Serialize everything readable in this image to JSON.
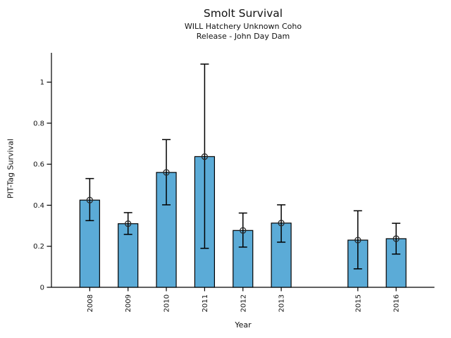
{
  "chart_data": {
    "type": "bar",
    "title": "Smolt Survival",
    "subtitle1": "WILL Hatchery Unknown Coho",
    "subtitle2": "Release - John Day Dam",
    "xlabel": "Year",
    "ylabel": "PIT-Tag Survival",
    "categories": [
      "2008",
      "2009",
      "2010",
      "2011",
      "2012",
      "2013",
      "2015",
      "2016"
    ],
    "years": [
      2008,
      2009,
      2010,
      2011,
      2012,
      2013,
      2015,
      2016
    ],
    "values": [
      0.425,
      0.31,
      0.56,
      0.637,
      0.277,
      0.313,
      0.23,
      0.237
    ],
    "error_low": [
      0.325,
      0.258,
      0.402,
      0.19,
      0.196,
      0.22,
      0.09,
      0.162
    ],
    "error_high": [
      0.53,
      0.364,
      0.72,
      1.088,
      0.362,
      0.402,
      0.373,
      0.312
    ],
    "yticks": [
      0,
      0.2,
      0.4,
      0.6,
      0.8,
      1
    ],
    "ytick_labels": [
      "0",
      "0.2",
      "0.4",
      "0.6",
      "0.8",
      "1"
    ],
    "ylim": [
      0,
      1.143
    ],
    "xlim": [
      2007,
      2017
    ],
    "grid": false,
    "legend": "none",
    "marker": "open-circle",
    "bar_color": "#5BABD7",
    "bar_edge_color": "#000000",
    "error_color": "#000000",
    "background": "#FFFFFF"
  }
}
